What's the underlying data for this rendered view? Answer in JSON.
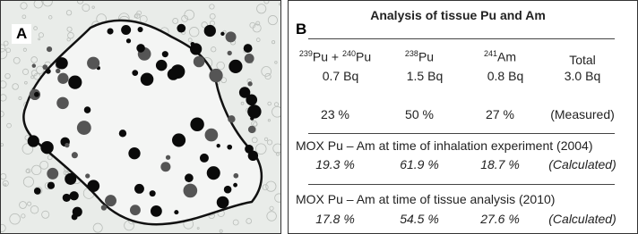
{
  "panel_a": {
    "label": "A"
  },
  "panel_b": {
    "label": "B",
    "title": "Analysis of tissue Pu and Am",
    "header": [
      [
        "239",
        "Pu + ",
        "240",
        "Pu"
      ],
      [
        "238",
        "Pu"
      ],
      [
        "241",
        "Am"
      ],
      [
        "Total"
      ]
    ],
    "measured_activity": [
      "0.7 Bq",
      "1.5 Bq",
      "0.8 Bq",
      "3.0 Bq"
    ],
    "measured_percent": [
      "23 %",
      "50 %",
      "27 %",
      "(Measured)"
    ],
    "sections": [
      {
        "title": "MOX  Pu – Am at time of inhalation experiment (2004)",
        "values": [
          "19.3 %",
          "61.9 %",
          "18.7 %",
          "(Calculated)"
        ]
      },
      {
        "title": "MOX  Pu – Am at time of tissue analysis (2010)",
        "values": [
          "17.8 %",
          "54.5 %",
          "27.6 %",
          "(Calculated)"
        ]
      }
    ]
  }
}
